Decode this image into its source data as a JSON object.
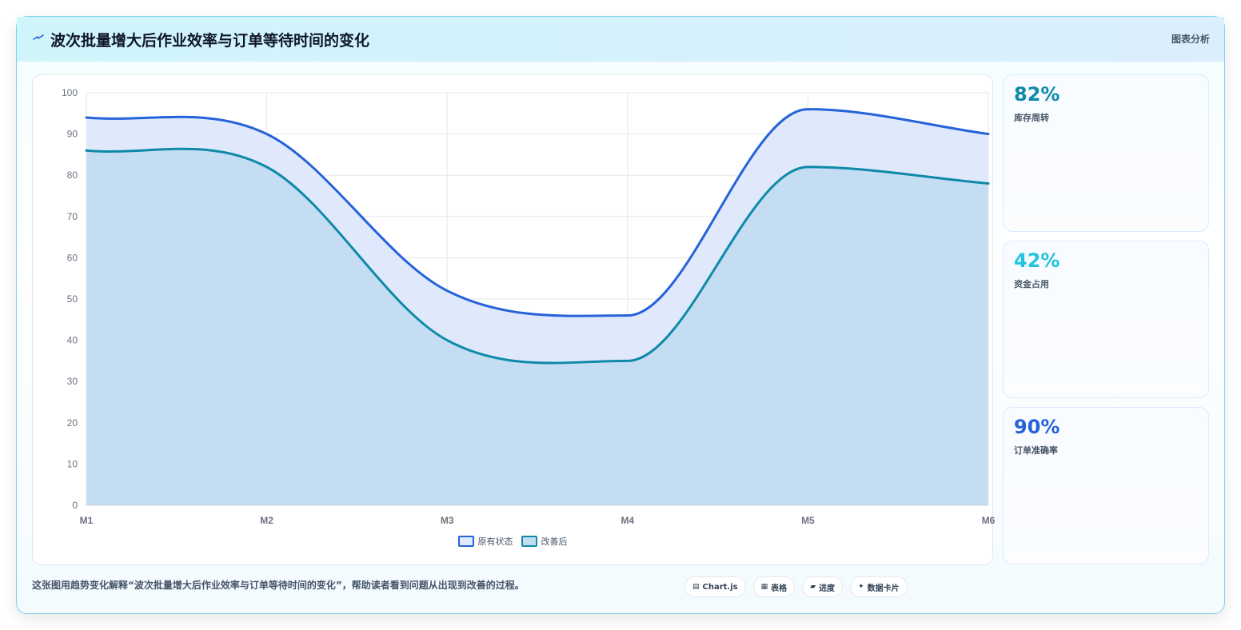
{
  "header": {
    "title": "波次批量增大后作业效率与订单等待时间的变化",
    "tag": "图表分析",
    "icon": "spark-icon"
  },
  "chart_data": {
    "type": "area",
    "categories": [
      "M1",
      "M2",
      "M3",
      "M4",
      "M5",
      "M6"
    ],
    "series": [
      {
        "name": "原有状态",
        "values": [
          94,
          90,
          52,
          46,
          96,
          90
        ],
        "color": "#2563d9",
        "fill": "#e0e9fb"
      },
      {
        "name": "改善后",
        "values": [
          86,
          82,
          40,
          35,
          82,
          78
        ],
        "color": "#0e8aa8",
        "fill": "#c5ddf2"
      }
    ],
    "ylim": [
      0,
      100
    ],
    "yticks": [
      0,
      10,
      20,
      30,
      40,
      50,
      60,
      70,
      80,
      90,
      100
    ],
    "grid": true,
    "legend": "bottom"
  },
  "stats": [
    {
      "value": "82%",
      "label": "库存周转",
      "color": "#0e8aa8"
    },
    {
      "value": "42%",
      "label": "资金占用",
      "color": "#22c3dc"
    },
    {
      "value": "90%",
      "label": "订单准确率",
      "color": "#2563d9"
    }
  ],
  "footer": {
    "text": "这张图用趋势变化解释“波次批量增大后作业效率与订单等待时间的变化”，帮助读者看到问题从出现到改善的过程。",
    "pills": [
      {
        "icon": "▤",
        "label": "Chart.js"
      },
      {
        "icon": "▦",
        "label": "表格"
      },
      {
        "icon": "▰",
        "label": "进度"
      },
      {
        "icon": "✦",
        "label": "数据卡片"
      }
    ]
  }
}
